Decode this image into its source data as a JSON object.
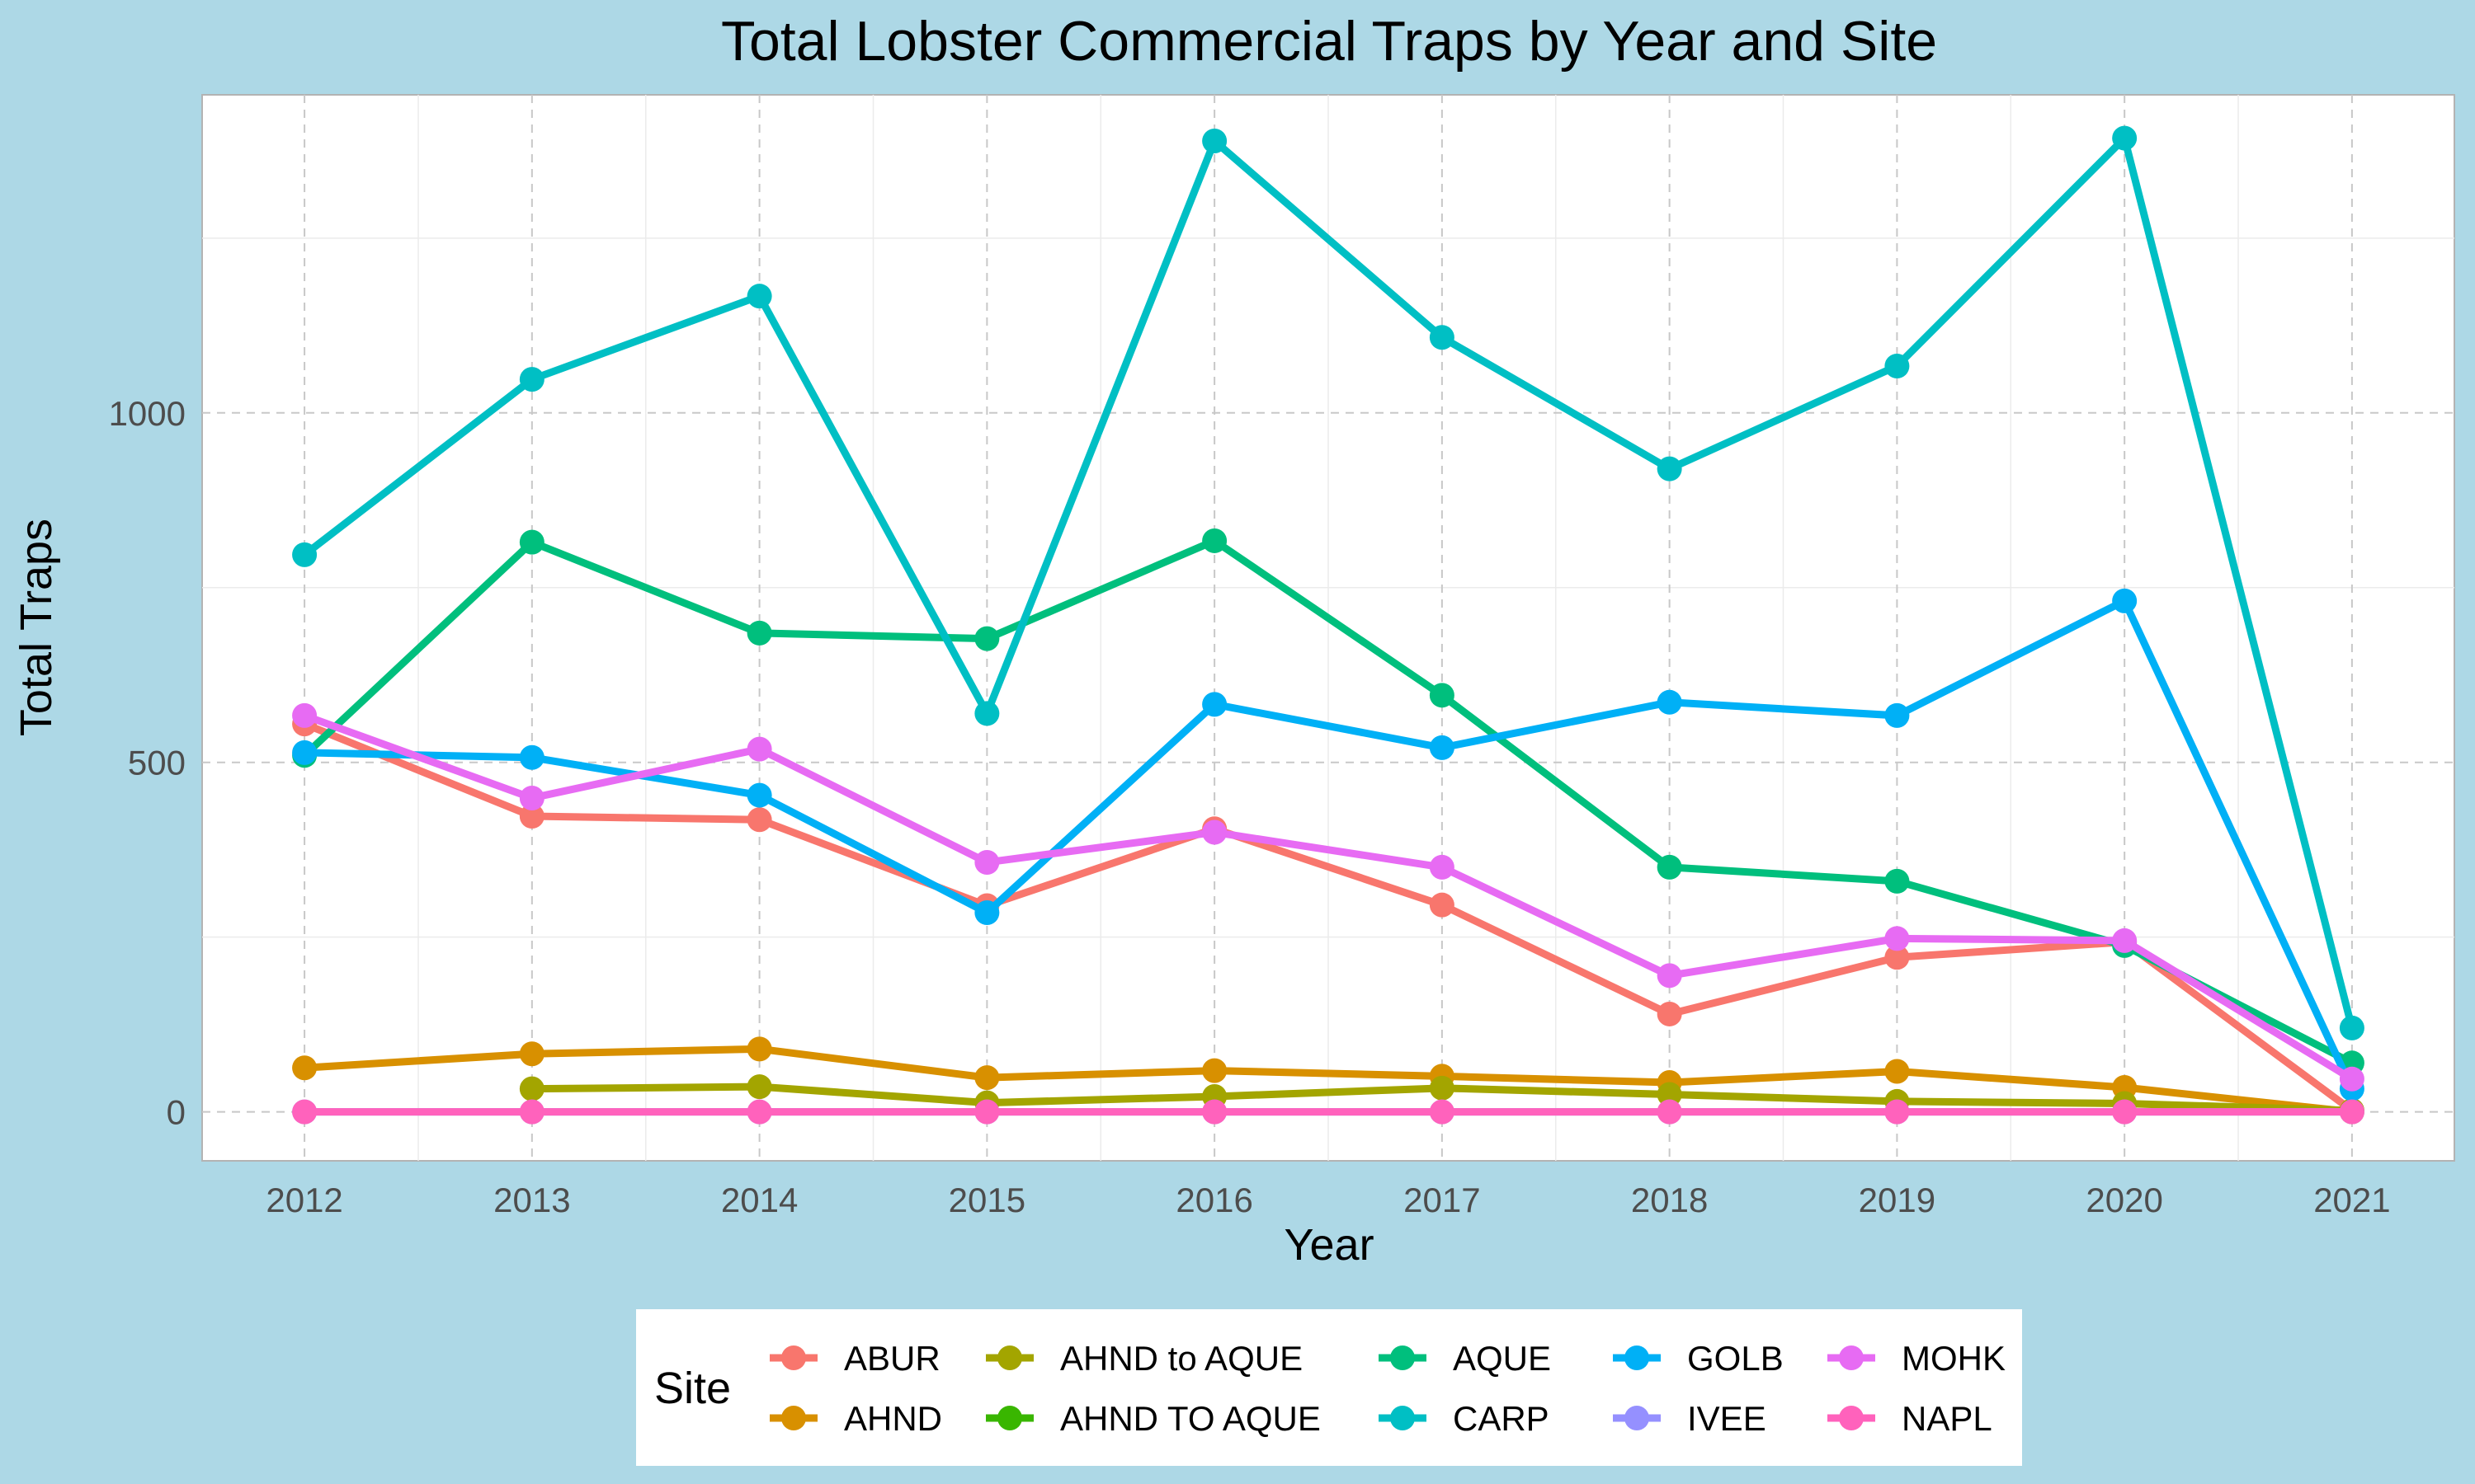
{
  "chart_data": {
    "type": "line",
    "title": "Total Lobster Commercial Traps by Year and Site",
    "xlabel": "Year",
    "ylabel": "Total Traps",
    "x": [
      2012,
      2013,
      2014,
      2015,
      2016,
      2017,
      2018,
      2019,
      2020,
      2021
    ],
    "xlim": [
      2011.55,
      2021.45
    ],
    "ylim": [
      -70,
      1455
    ],
    "y_ticks": [
      0,
      500,
      1000
    ],
    "grid": true,
    "legend_position": "bottom",
    "legend_title": "Site",
    "series": [
      {
        "name": "ABUR",
        "color": "#F8766D",
        "values": [
          555,
          423,
          418,
          295,
          405,
          296,
          140,
          221,
          243,
          2
        ]
      },
      {
        "name": "AHND",
        "color": "#D89000",
        "values": [
          63,
          83,
          90,
          49,
          59,
          51,
          42,
          58,
          35,
          0
        ]
      },
      {
        "name": "AHND to AQUE",
        "color": "#A3A500",
        "values": [
          null,
          33,
          36,
          13,
          22,
          34,
          25,
          15,
          12,
          2
        ]
      },
      {
        "name": "AHND TO AQUE",
        "color": "#39B600",
        "values": [
          null,
          null,
          null,
          null,
          null,
          null,
          null,
          null,
          null,
          null
        ]
      },
      {
        "name": "AQUE",
        "color": "#00BF7D",
        "values": [
          510,
          815,
          685,
          677,
          817,
          596,
          350,
          330,
          238,
          70
        ]
      },
      {
        "name": "CARP",
        "color": "#00BFC4",
        "values": [
          797,
          1048,
          1167,
          570,
          1389,
          1108,
          920,
          1067,
          1393,
          120
        ]
      },
      {
        "name": "GOLB",
        "color": "#00B0F6",
        "values": [
          514,
          507,
          453,
          285,
          583,
          521,
          586,
          567,
          731,
          33
        ]
      },
      {
        "name": "IVEE",
        "color": "#9590FF",
        "values": [
          0,
          0,
          0,
          0,
          0,
          0,
          0,
          0,
          0,
          0
        ]
      },
      {
        "name": "MOHK",
        "color": "#E76BF3",
        "values": [
          567,
          449,
          519,
          357,
          400,
          350,
          195,
          248,
          245,
          47
        ]
      },
      {
        "name": "NAPL",
        "color": "#FF62BC",
        "values": [
          0,
          0,
          0,
          0,
          0,
          0,
          0,
          0,
          0,
          0
        ]
      }
    ]
  }
}
